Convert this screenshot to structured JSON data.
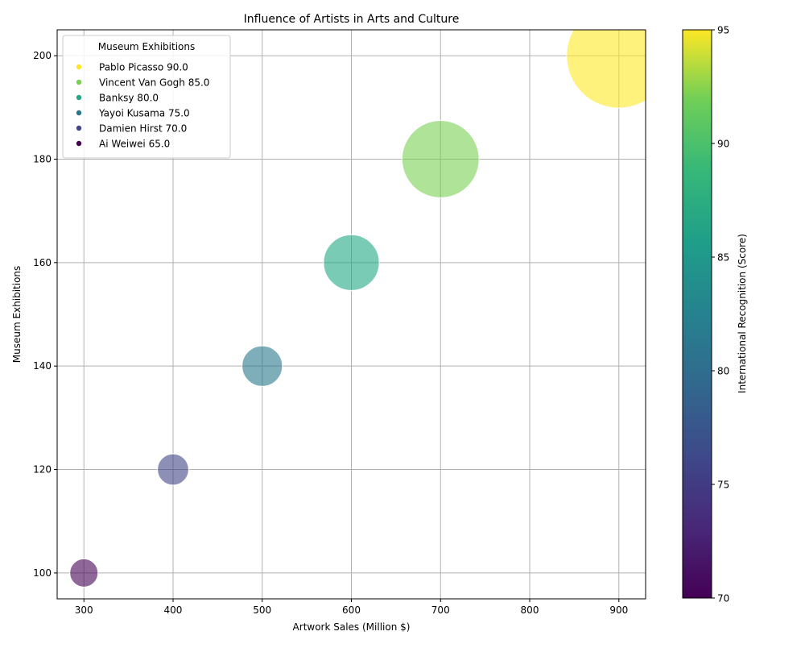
{
  "chart_data": {
    "type": "scatter",
    "title": "Influence of Artists in Arts and Culture",
    "xlabel": "Artwork Sales (Million $)",
    "ylabel": "Museum Exhibitions",
    "xlim": [
      270,
      930
    ],
    "ylim": [
      95,
      205
    ],
    "xticks": [
      300,
      400,
      500,
      600,
      700,
      800,
      900
    ],
    "yticks": [
      100,
      120,
      140,
      160,
      180,
      200
    ],
    "grid": true,
    "colormap": "viridis",
    "colorbar": {
      "label": "International Recognition (Score)",
      "range": [
        70,
        95
      ],
      "ticks": [
        70,
        75,
        80,
        85,
        90,
        95
      ]
    },
    "legend": {
      "title": "Museum Exhibitions",
      "placement": "top-left"
    },
    "points": [
      {
        "artist": "Pablo Picasso",
        "legend_label": "Pablo Picasso 90.0",
        "x": 900,
        "y": 200,
        "score": 95,
        "size": 90,
        "color": "#fde725"
      },
      {
        "artist": "Vincent Van Gogh",
        "legend_label": "Vincent Van Gogh 85.0",
        "x": 700,
        "y": 180,
        "score": 90,
        "size": 85,
        "color": "#7ad151"
      },
      {
        "artist": "Banksy",
        "legend_label": "Banksy 80.0",
        "x": 600,
        "y": 160,
        "score": 85,
        "size": 80,
        "color": "#22a884"
      },
      {
        "artist": "Yayoi Kusama",
        "legend_label": "Yayoi Kusama 75.0",
        "x": 500,
        "y": 140,
        "score": 80,
        "size": 75,
        "color": "#2a788e"
      },
      {
        "artist": "Damien Hirst",
        "legend_label": "Damien Hirst 70.0",
        "x": 400,
        "y": 120,
        "score": 75,
        "size": 70,
        "color": "#414487"
      },
      {
        "artist": "Ai Weiwei",
        "legend_label": "Ai Weiwei 65.0",
        "x": 300,
        "y": 100,
        "score": 70,
        "size": 65,
        "color": "#440154"
      }
    ]
  }
}
